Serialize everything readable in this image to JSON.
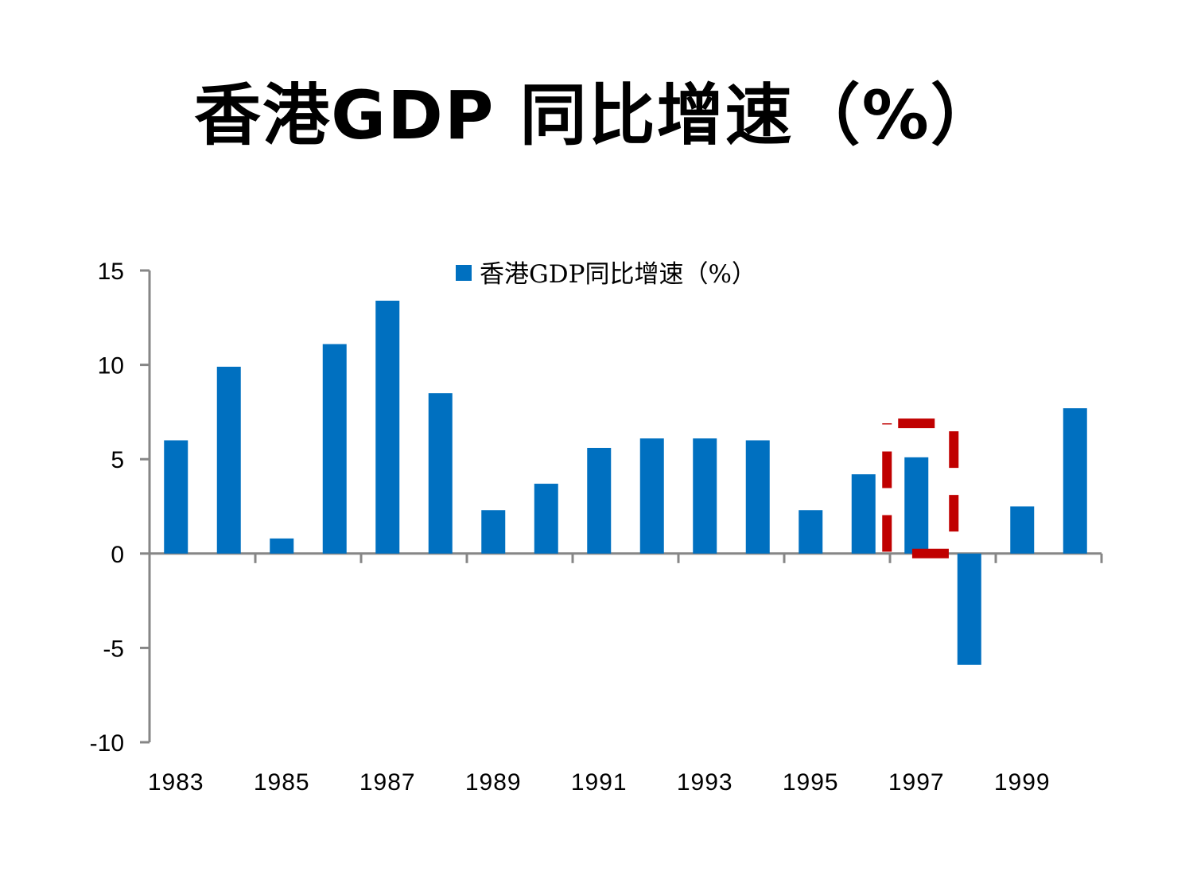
{
  "slide": {
    "title": "香港GDP 同比增速（%）"
  },
  "chart_data": {
    "type": "bar",
    "title": "",
    "xlabel": "",
    "ylabel": "",
    "categories": [
      "1983",
      "1984",
      "1985",
      "1986",
      "1987",
      "1988",
      "1989",
      "1990",
      "1991",
      "1992",
      "1993",
      "1994",
      "1995",
      "1996",
      "1997",
      "1998",
      "1999",
      "2000"
    ],
    "x_tick_labels_shown": [
      "1983",
      "1985",
      "1987",
      "1989",
      "1991",
      "1993",
      "1995",
      "1997",
      "1999"
    ],
    "series": [
      {
        "name": "香港GDP同比增速（%）",
        "color": "#0070C0",
        "values": [
          6.0,
          9.9,
          0.8,
          11.1,
          13.4,
          8.5,
          2.3,
          3.7,
          5.6,
          6.1,
          6.1,
          6.0,
          2.3,
          4.2,
          5.1,
          -5.9,
          2.5,
          7.7
        ]
      }
    ],
    "ylim": [
      -10,
      15
    ],
    "y_ticks": [
      -10,
      -5,
      0,
      5,
      10,
      15
    ],
    "grid": false,
    "legend": "top-center",
    "highlight": {
      "category": "1997",
      "style": "dashed-box",
      "color": "#C00000"
    }
  }
}
